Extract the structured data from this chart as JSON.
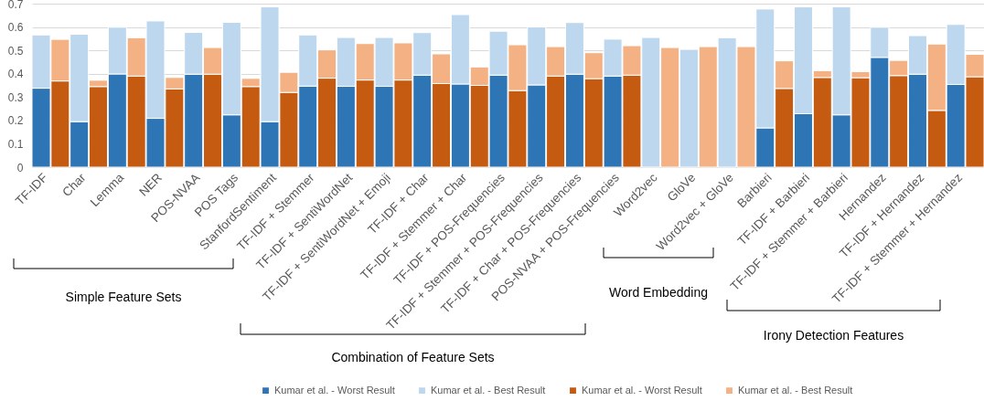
{
  "chart_data": {
    "type": "bar",
    "stacked": true,
    "categories": [
      "TF-IDF",
      null,
      "Char",
      null,
      "Lemma",
      null,
      "NER",
      null,
      "POS-NVAA",
      null,
      "POS Tags",
      null,
      "StanfordSentiment",
      null,
      "TF-IDF + Stemmer",
      null,
      "TF-IDF + SentiWordNet",
      null,
      "TF-IDF + SentiWordNet + Emoji",
      null,
      "TF-IDF + Char",
      null,
      "TF-IDF + Stemmer + Char",
      null,
      "TF-IDF + POS-Frequencies",
      null,
      "TF-IDF + Stemmer + POS-Frequencies",
      null,
      "TF-IDF + Char + POS-Frequencies",
      null,
      "POS-NVAA + POS-Frequencies",
      null,
      "Word2vec",
      null,
      "GloVe",
      null,
      "Word2vec + GloVe",
      null,
      "Barbieri",
      null,
      "TF-IDF + Barbieri",
      null,
      "TF-IDF + Stemmer + Barbieri",
      null,
      "Hernandez",
      null,
      "TF-IDF + Hernandez",
      null,
      "TF-IDF + Stemmer + Hernandez",
      null
    ],
    "series": [
      {
        "name": "Kumar et al. - Worst Result",
        "color": "#2e75b6",
        "values": [
          0.338,
          null,
          0.195,
          null,
          0.399,
          null,
          0.209,
          null,
          0.398,
          null,
          0.224,
          null,
          0.195,
          null,
          0.347,
          null,
          0.346,
          null,
          0.346,
          null,
          0.394,
          null,
          0.356,
          null,
          0.394,
          null,
          0.352,
          null,
          0.398,
          null,
          0.39,
          null,
          null,
          null,
          null,
          null,
          null,
          null,
          0.168,
          null,
          0.229,
          null,
          0.224,
          null,
          0.47,
          null,
          0.398,
          null,
          0.354,
          null
        ]
      },
      {
        "name": "Kumar et al. - Best Result",
        "color": "#bdd7ee",
        "values": [
          0.228,
          null,
          0.374,
          null,
          0.2,
          null,
          0.417,
          null,
          0.179,
          null,
          0.396,
          null,
          0.491,
          null,
          0.219,
          null,
          0.209,
          null,
          0.209,
          null,
          0.182,
          null,
          0.297,
          null,
          0.188,
          null,
          0.248,
          null,
          0.221,
          null,
          0.158,
          null,
          0.555,
          null,
          0.504,
          null,
          0.554,
          null,
          0.509,
          null,
          0.457,
          null,
          0.462,
          null,
          0.129,
          null,
          0.165,
          null,
          0.257,
          null
        ]
      },
      {
        "name": "Kumar et al. - Worst Result",
        "color": "#c55a11",
        "values": [
          null,
          0.369,
          null,
          0.345,
          null,
          0.39,
          null,
          0.335,
          null,
          0.398,
          null,
          0.345,
          null,
          0.32,
          null,
          0.381,
          null,
          0.373,
          null,
          0.373,
          null,
          0.358,
          null,
          0.35,
          null,
          0.328,
          null,
          0.39,
          null,
          0.379,
          null,
          0.394,
          null,
          null,
          null,
          null,
          null,
          null,
          null,
          0.337,
          null,
          0.384,
          null,
          0.383,
          null,
          0.392,
          null,
          0.243,
          null,
          0.387
        ]
      },
      {
        "name": "Kumar et al. - Best Result",
        "color": "#f4b183",
        "values": [
          null,
          0.178,
          null,
          0.027,
          null,
          0.164,
          null,
          0.049,
          null,
          0.114,
          null,
          0.035,
          null,
          0.086,
          null,
          0.121,
          null,
          0.156,
          null,
          0.159,
          null,
          0.127,
          null,
          0.079,
          null,
          0.196,
          null,
          0.126,
          null,
          0.111,
          null,
          0.126,
          null,
          0.512,
          null,
          0.516,
          null,
          0.516,
          null,
          0.118,
          null,
          0.029,
          null,
          0.026,
          null,
          0.065,
          null,
          0.284,
          null,
          0.096
        ]
      }
    ],
    "ylim": [
      0,
      0.7
    ],
    "yticks": [
      0,
      0.1,
      0.2,
      0.3,
      0.4,
      0.5,
      0.6,
      0.7
    ],
    "grid": "y",
    "legend": "bottom",
    "annotations": [
      "Simple Feature Sets",
      "Combination of Feature Sets",
      "Word Embedding",
      "Irony Detection Features"
    ]
  }
}
